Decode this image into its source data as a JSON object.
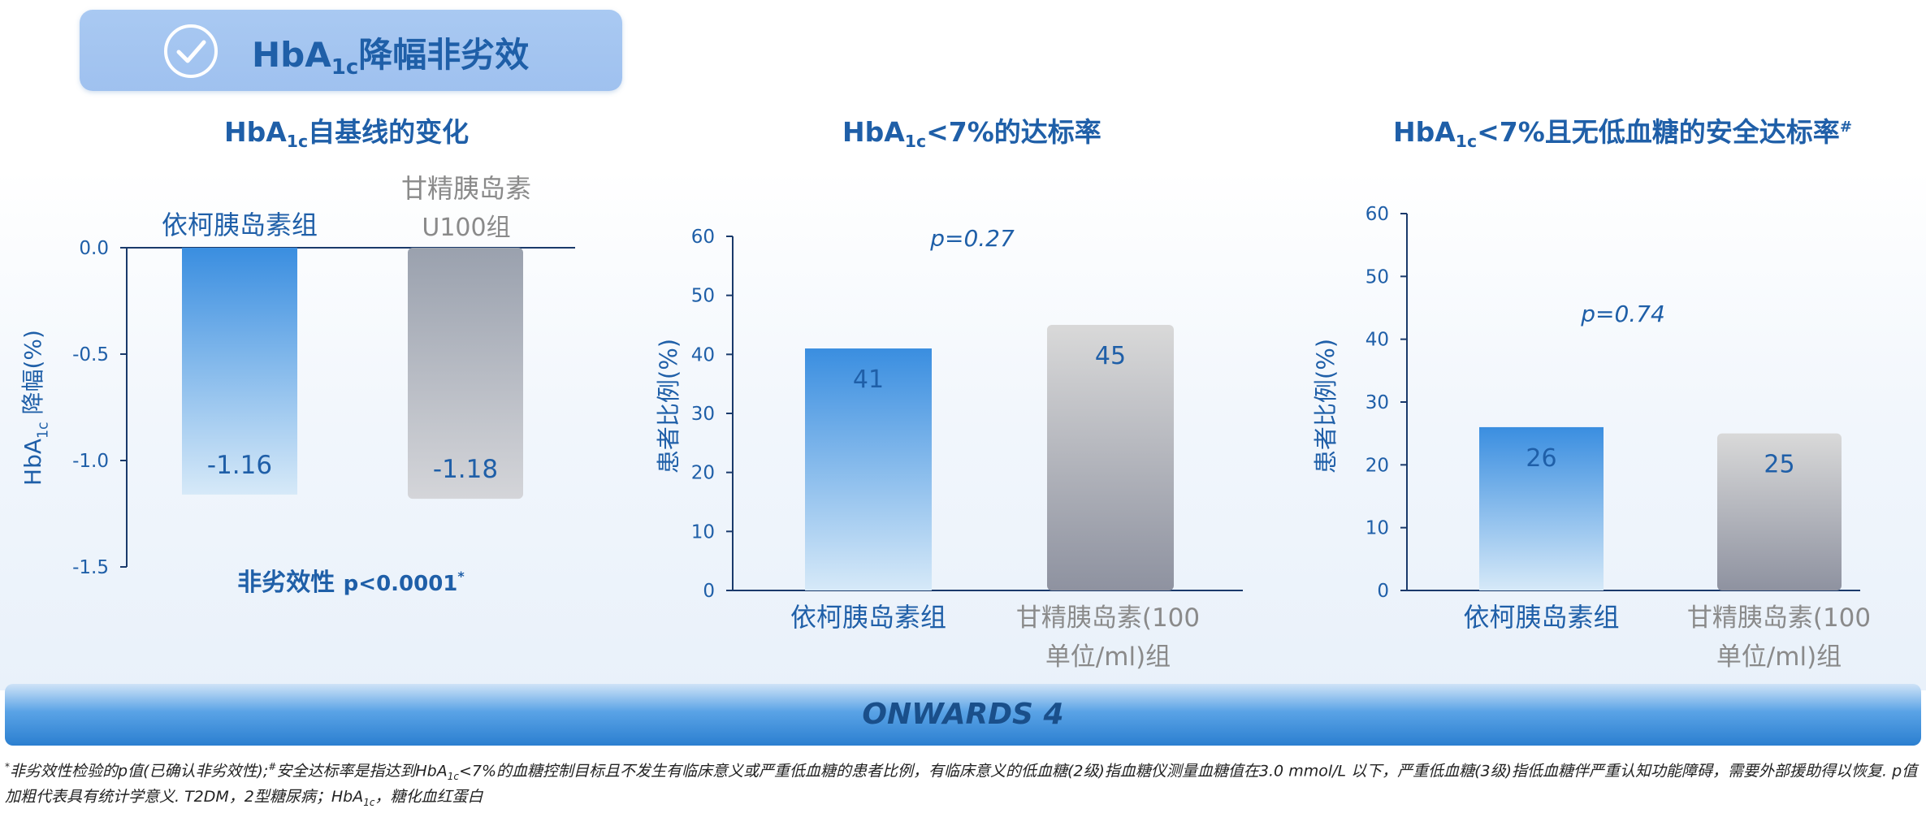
{
  "header": {
    "title_main": "HbA",
    "title_sub": "1c",
    "title_rest": "降幅非劣效"
  },
  "colors": {
    "blue_top": "#3a8ee0",
    "blue_bottom": "#d6e9f8",
    "gray_top": "#9aa1ae",
    "gray_bottom": "#d4d5d9",
    "gray_top2": "#d9d9d9",
    "gray_bottom2": "#8e92a0",
    "text_blue": "#1f5fa8",
    "text_gray": "#8a8a8a"
  },
  "panel1": {
    "title_main": "HbA",
    "title_sub": "1c",
    "title_rest": "自基线的变化",
    "ylabel_main": "HbA",
    "ylabel_sub": "1c",
    "ylabel_rest": " 降幅(%)",
    "cat1": "依柯胰岛素组",
    "cat2_line1": "甘精胰岛素",
    "cat2_line2": "U100组",
    "note_main": "非劣效性 ",
    "note_p": "p<0.0001",
    "note_star": "*"
  },
  "panel2": {
    "title_main": "HbA",
    "title_sub": "1c",
    "title_rest": "<7%的达标率",
    "ylabel": "患者比例(%)",
    "pvalue": "p=0.27",
    "cat1": "依柯胰岛素组",
    "cat2_line1": "甘精胰岛素(100",
    "cat2_line2": "单位/ml)组"
  },
  "panel3": {
    "title_main": "HbA",
    "title_sub": "1c",
    "title_rest": "<7%且无低血糖的安全达标率",
    "title_mark": "#",
    "ylabel": "患者比例(%)",
    "pvalue": "p=0.74",
    "cat1": "依柯胰岛素组",
    "cat2_line1": "甘精胰岛素(100",
    "cat2_line2": "单位/ml)组"
  },
  "chart_data": [
    {
      "type": "bar",
      "categories": [
        "依柯胰岛素组",
        "甘精胰岛素U100组"
      ],
      "values": [
        -1.16,
        -1.18
      ],
      "ylim": [
        -1.5,
        0.0
      ],
      "yticks": [
        "0.0",
        "-0.5",
        "-1.0",
        "-1.5"
      ],
      "ylabel": "HbA1c 降幅(%)",
      "title": "HbA1c自基线的变化",
      "annotation": "非劣效性 p<0.0001*"
    },
    {
      "type": "bar",
      "categories": [
        "依柯胰岛素组",
        "甘精胰岛素(100单位/ml)组"
      ],
      "values": [
        41,
        45
      ],
      "ylim": [
        0,
        60
      ],
      "yticks": [
        "0",
        "10",
        "20",
        "30",
        "40",
        "50",
        "60"
      ],
      "ylabel": "患者比例(%)",
      "title": "HbA1c<7%的达标率",
      "annotation": "p=0.27"
    },
    {
      "type": "bar",
      "categories": [
        "依柯胰岛素组",
        "甘精胰岛素(100单位/ml)组"
      ],
      "values": [
        26,
        25
      ],
      "ylim": [
        0,
        60
      ],
      "yticks": [
        "0",
        "10",
        "20",
        "30",
        "40",
        "50",
        "60"
      ],
      "ylabel": "患者比例(%)",
      "title": "HbA1c<7%且无低血糖的安全达标率#",
      "annotation": "p=0.74"
    }
  ],
  "footer": {
    "label": "ONWARDS 4"
  },
  "footnote": {
    "star": "*",
    "part1": "非劣效性检验的p值(已确认非劣效性);",
    "hash": "#",
    "part2": "安全达标率是指达到HbA",
    "sub1": "1c",
    "part3": "<7%的血糖控制目标且不发生有临床意义或严重低血糖的患者比例，有临床意义的低血糖(2级)指血糖仪测量血糖值在3.0 mmol/L 以下，严重低血糖(3级)指低血糖伴严重认知功能障碍，需要外部援助得以恢复. p值加粗代表具有统计学意义. T2DM，2型糖尿病；HbA",
    "sub2": "1c",
    "part4": "，糖化血红蛋白"
  }
}
